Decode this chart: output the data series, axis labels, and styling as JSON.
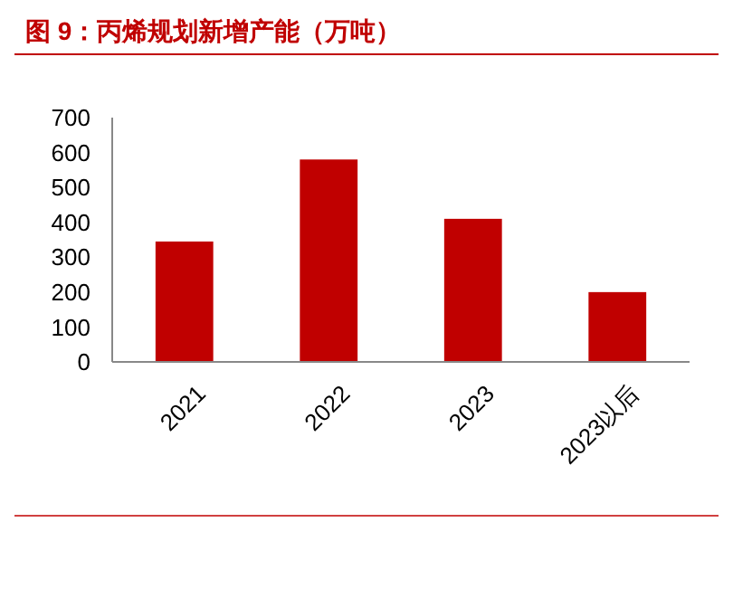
{
  "chart_data": {
    "type": "bar",
    "title": "图 9：丙烯规划新增产能（万吨）",
    "categories": [
      "2021",
      "2022",
      "2023",
      "2023以后"
    ],
    "values": [
      345,
      580,
      410,
      200
    ],
    "color": "#c00000",
    "ylim": [
      0,
      700
    ],
    "yticks": [
      0,
      100,
      200,
      300,
      400,
      500,
      600,
      700
    ],
    "grid": false
  }
}
